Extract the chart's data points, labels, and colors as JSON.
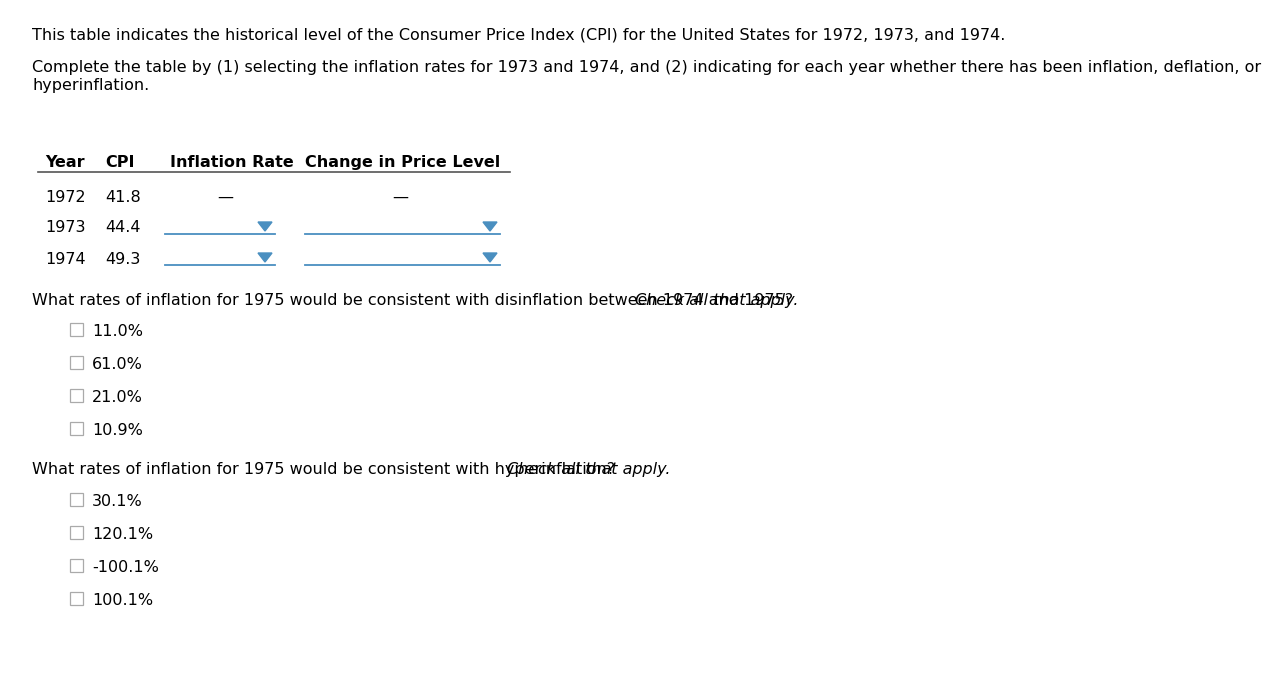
{
  "bg_color": "#ffffff",
  "text_color": "#000000",
  "header_text1": "This table indicates the historical level of the Consumer Price Index (CPI) for the United States for 1972, 1973, and 1974.",
  "header_text2_line1": "Complete the table by (1) selecting the inflation rates for 1973 and 1974, and (2) indicating for each year whether there has been inflation, deflation, or",
  "header_text2_line2": "hyperinflation.",
  "table_headers": [
    "Year",
    "CPI",
    "Inflation Rate",
    "Change in Price Level"
  ],
  "table_years": [
    "1972",
    "1973",
    "1974"
  ],
  "table_cpis": [
    "41.8",
    "44.4",
    "49.3"
  ],
  "dash_char": "—",
  "question1_normal": "What rates of inflation for 1975 would be consistent with disinflation between 1974 and 1975? ",
  "question1_italic": "Check all that apply.",
  "q1_options": [
    "11.0%",
    "61.0%",
    "21.0%",
    "10.9%"
  ],
  "question2_normal": "What rates of inflation for 1975 would be consistent with hyperinflation? ",
  "question2_italic": "Check all that apply.",
  "q2_options": [
    "30.1%",
    "120.1%",
    "-100.1%",
    "100.1%"
  ],
  "dropdown_color": "#4a8fc0",
  "line_color": "#4a8fc0",
  "checkbox_edge_color": "#aaaaaa",
  "header_line_color": "#555555",
  "font_size": 11.5
}
